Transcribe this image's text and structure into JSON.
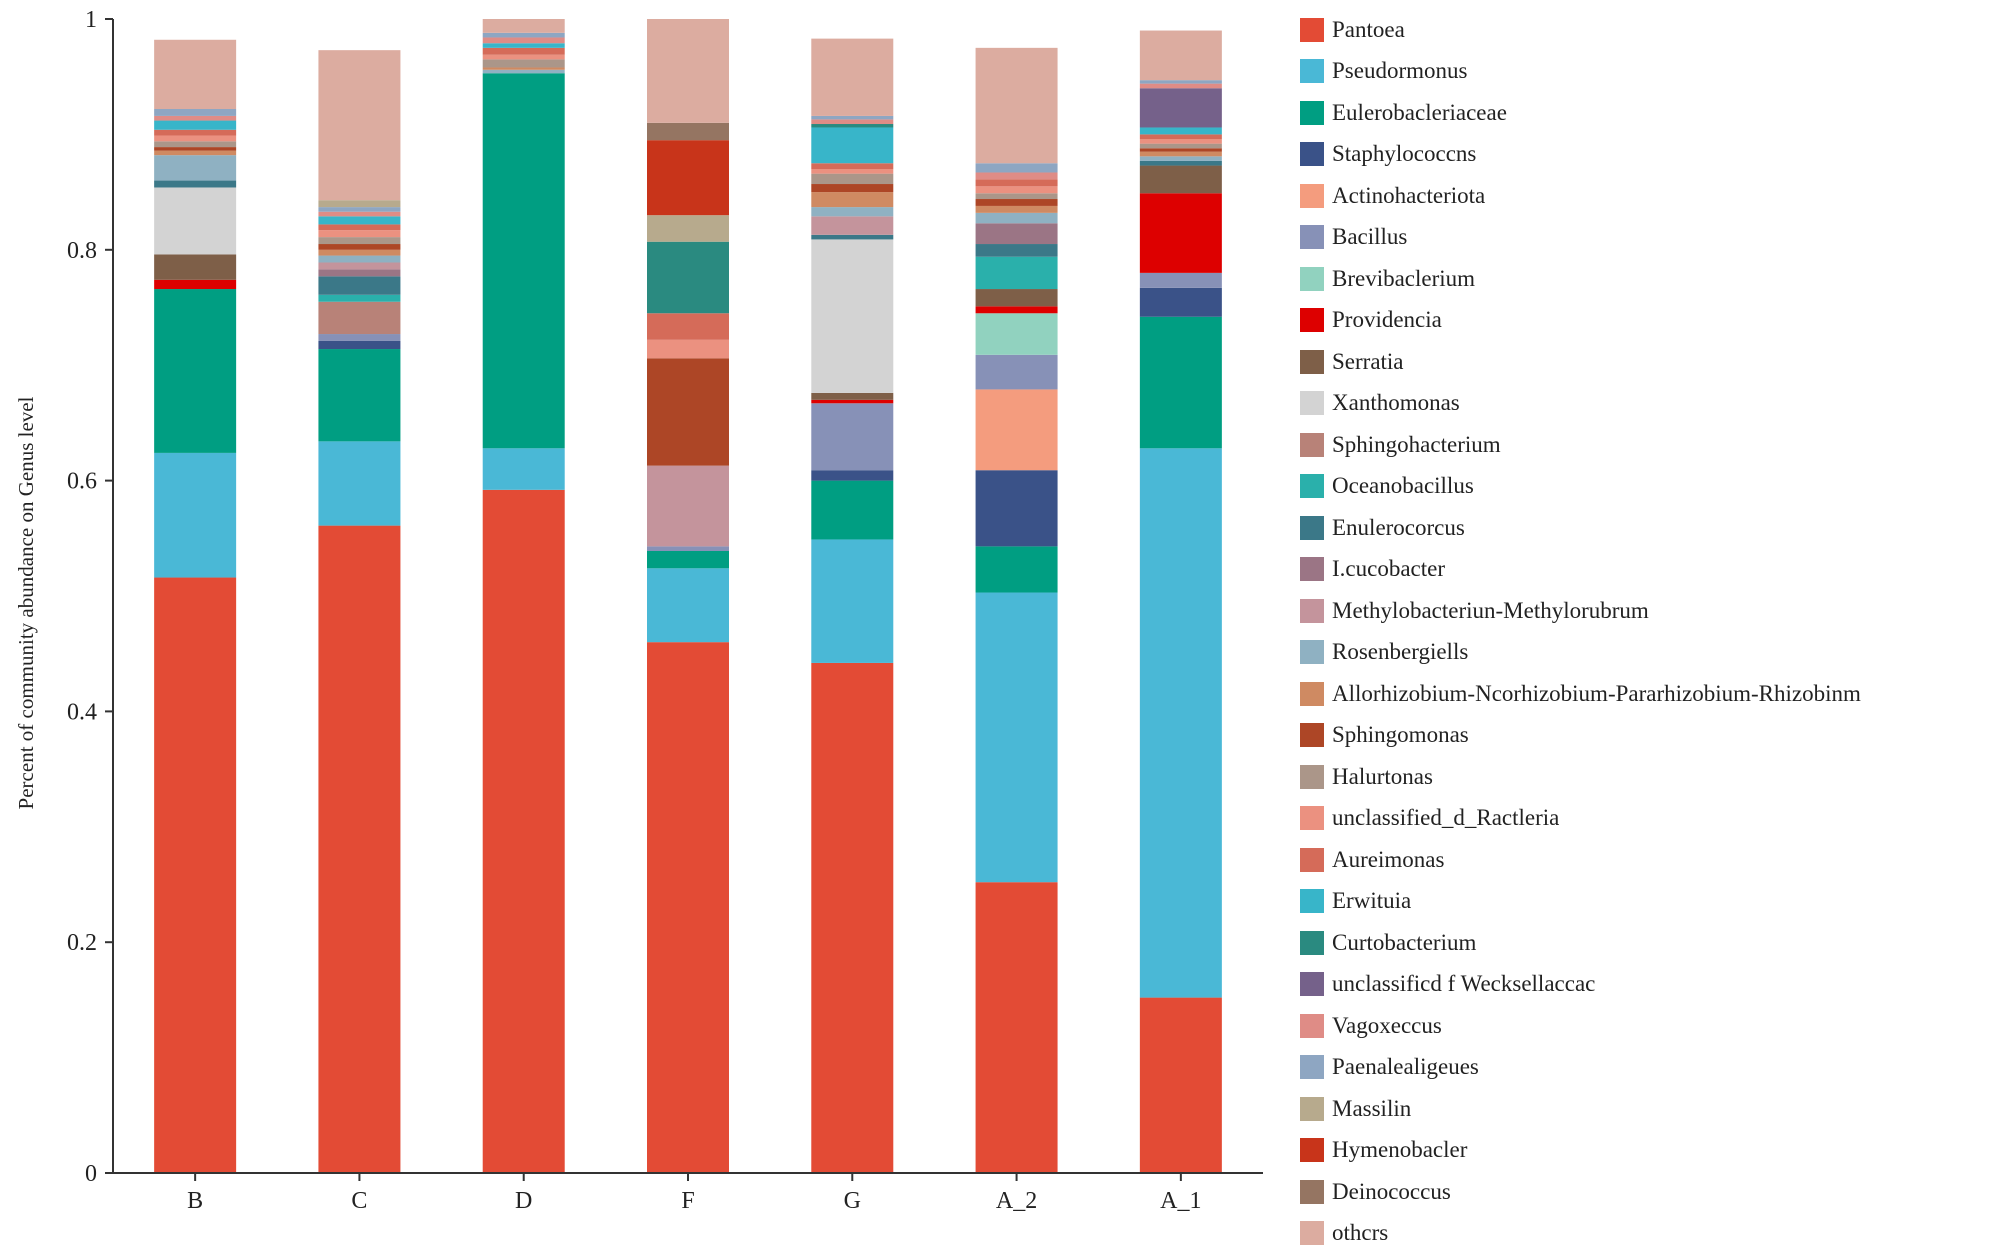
{
  "chart_data": {
    "type": "bar",
    "stacked": true,
    "ylabel": "Percent of community abundance on Genus level",
    "xlabel": "",
    "ylim": [
      0,
      1
    ],
    "yticks": [
      0,
      0.2,
      0.4,
      0.6,
      0.8,
      1
    ],
    "ytick_labels": [
      "0",
      "0.2",
      "0.4",
      "0.6",
      "0.8",
      "1"
    ],
    "legend_position": "right",
    "categories": [
      "B",
      "C",
      "D",
      "F",
      "G",
      "A_2",
      "A_1"
    ],
    "series": [
      {
        "name": "Pantoea",
        "color": "#e34b35",
        "values": [
          0.516,
          0.561,
          0.592,
          0.46,
          0.442,
          0.252,
          0.152
        ]
      },
      {
        "name": "Pseudormonus",
        "color": "#4ab8d6",
        "values": [
          0.108,
          0.073,
          0.036,
          0.064,
          0.107,
          0.251,
          0.476
        ]
      },
      {
        "name": "Eulerobacleriaceae",
        "color": "#009e82",
        "values": [
          0.142,
          0.08,
          0.325,
          0.015,
          0.051,
          0.04,
          0.114
        ]
      },
      {
        "name": "Staphylococcns",
        "color": "#3a5288",
        "values": [
          0,
          0.007,
          0,
          0,
          0.009,
          0.066,
          0.025
        ]
      },
      {
        "name": "Actinohacteriota",
        "color": "#f49c7e",
        "values": [
          0,
          0,
          0,
          0,
          0,
          0.07,
          0
        ]
      },
      {
        "name": "Bacillus",
        "color": "#8791b7",
        "values": [
          0,
          0.006,
          0,
          0.004,
          0.058,
          0.03,
          0.013
        ]
      },
      {
        "name": "Brevibaclerium",
        "color": "#91d2bf",
        "values": [
          0,
          0,
          0,
          0,
          0,
          0.036,
          0
        ]
      },
      {
        "name": "Providencia",
        "color": "#dd0000",
        "values": [
          0.008,
          0,
          0,
          0,
          0.003,
          0.006,
          0.069
        ]
      },
      {
        "name": "Serratia",
        "color": "#7e5f48",
        "values": [
          0.022,
          0,
          0,
          0,
          0.006,
          0.015,
          0.024
        ]
      },
      {
        "name": "Xanthomonas",
        "color": "#d3d3d3",
        "values": [
          0.058,
          0,
          0,
          0,
          0.133,
          0,
          0
        ]
      },
      {
        "name": "Sphingohacterium",
        "color": "#b88278",
        "values": [
          0,
          0.028,
          0,
          0,
          0,
          0,
          0
        ]
      },
      {
        "name": "Oceanobacillus",
        "color": "#2ab0ab",
        "values": [
          0,
          0.006,
          0,
          0,
          0,
          0.028,
          0
        ]
      },
      {
        "name": "Enulerocorcus",
        "color": "#3b7888",
        "values": [
          0.006,
          0.016,
          0,
          0,
          0.004,
          0.011,
          0.004
        ]
      },
      {
        "name": "I.cucobacter",
        "color": "#9b7585",
        "values": [
          0,
          0.006,
          0,
          0,
          0,
          0.018,
          0
        ]
      },
      {
        "name": "Methylobacteriun-Methylorubrum",
        "color": "#c4949c",
        "values": [
          0,
          0.006,
          0,
          0.07,
          0.016,
          0,
          0
        ]
      },
      {
        "name": "Rosenbergiells",
        "color": "#8fb1c2",
        "values": [
          0.022,
          0.006,
          0.003,
          0,
          0.008,
          0.009,
          0.004
        ]
      },
      {
        "name": "Allorhizobium-Ncorhizobium-Pararhizobium-Rhizobinm",
        "color": "#cf8a62",
        "values": [
          0.004,
          0.005,
          0.002,
          0,
          0.013,
          0.006,
          0.004
        ]
      },
      {
        "name": "Sphingomonas",
        "color": "#ad4626",
        "values": [
          0.003,
          0.005,
          0,
          0.093,
          0.007,
          0.006,
          0.003
        ]
      },
      {
        "name": "Halurtonas",
        "color": "#ab9689",
        "values": [
          0.005,
          0.006,
          0.007,
          0,
          0.009,
          0.005,
          0.004
        ]
      },
      {
        "name": "unclassified_d_Ractleria",
        "color": "#eb9180",
        "values": [
          0.005,
          0.006,
          0.004,
          0.016,
          0.004,
          0.006,
          0.004
        ]
      },
      {
        "name": "Aureimonas",
        "color": "#d56b59",
        "values": [
          0.005,
          0.005,
          0.006,
          0.023,
          0.005,
          0.006,
          0.004
        ]
      },
      {
        "name": "Erwituia",
        "color": "#38b5c9",
        "values": [
          0.008,
          0.007,
          0.004,
          0,
          0.031,
          0,
          0.006
        ]
      },
      {
        "name": "Curtobacterium",
        "color": "#2a8a80",
        "values": [
          0,
          0,
          0,
          0.062,
          0.003,
          0,
          0
        ]
      },
      {
        "name": "unclassificd f  Wecksellaccac",
        "color": "#75618a",
        "values": [
          0,
          0,
          0,
          0,
          0,
          0,
          0.034
        ]
      },
      {
        "name": "Vagoxeccus",
        "color": "#df8c86",
        "values": [
          0.004,
          0.004,
          0.005,
          0,
          0.004,
          0.006,
          0.004
        ]
      },
      {
        "name": "Paenalealigeues",
        "color": "#8ea6c2",
        "values": [
          0.006,
          0.004,
          0.004,
          0,
          0.003,
          0.008,
          0.003
        ]
      },
      {
        "name": "Massilin",
        "color": "#b7aa8d",
        "values": [
          0,
          0.006,
          0,
          0.023,
          0,
          0,
          0
        ]
      },
      {
        "name": "Hymenobacler",
        "color": "#c8341a",
        "values": [
          0,
          0,
          0,
          0.065,
          0,
          0,
          0
        ]
      },
      {
        "name": "Deinococcus",
        "color": "#957562",
        "values": [
          0,
          0,
          0,
          0.015,
          0,
          0,
          0
        ]
      },
      {
        "name": "othcrs",
        "color": "#dcaca0",
        "values": [
          0.06,
          0.13,
          0.012,
          0.09,
          0.067,
          0.1,
          0.043
        ]
      }
    ]
  }
}
